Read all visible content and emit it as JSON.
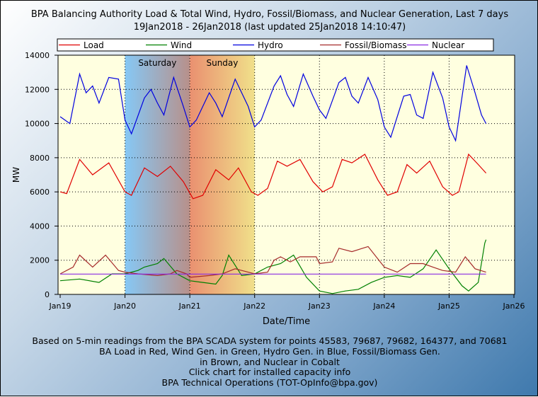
{
  "title_line1": "BPA Balancing Authority Load & Total Wind, Hydro, Fossil/Biomass, and Nuclear Generation, Last 7 days",
  "title_line2": "19Jan2018 - 26Jan2018 (last updated 25Jan2018 14:10:47)",
  "footer": [
    "Based on 5-min readings from the BPA SCADA system for points 45583, 79687, 79682, 164377, and 70681",
    "BA Load in Red, Wind Gen. in Green, Hydro Gen. in Blue, Fossil/Biomass Gen.",
    "in Brown, and Nuclear in Cobalt",
    "Click chart for installed capacity info",
    "BPA Technical Operations (TOT-OpInfo@bpa.gov)"
  ],
  "chart_data": {
    "type": "line",
    "xlabel": "Date/Time",
    "ylabel": "MW",
    "ylim": [
      0,
      14000
    ],
    "xlim_days": [
      0,
      7
    ],
    "yticks": [
      "0",
      "2000",
      "4000",
      "6000",
      "8000",
      "10000",
      "12000",
      "14000"
    ],
    "xticks": [
      "Jan19",
      "Jan20",
      "Jan21",
      "Jan22",
      "Jan23",
      "Jan24",
      "Jan25",
      "Jan26"
    ],
    "grid": true,
    "legend_placement": "top",
    "weekend_bands": [
      {
        "label": "Saturday",
        "start": 1,
        "end": 2
      },
      {
        "label": "Sunday",
        "start": 2,
        "end": 3
      }
    ],
    "series": [
      {
        "name": "Load",
        "color": "#e00000",
        "x": [
          0,
          0.1,
          0.3,
          0.5,
          0.75,
          1.0,
          1.1,
          1.3,
          1.5,
          1.7,
          1.9,
          2.05,
          2.2,
          2.4,
          2.6,
          2.75,
          2.95,
          3.05,
          3.2,
          3.35,
          3.5,
          3.7,
          3.9,
          4.05,
          4.2,
          4.35,
          4.5,
          4.7,
          4.9,
          5.05,
          5.2,
          5.35,
          5.5,
          5.7,
          5.9,
          6.05,
          6.15,
          6.3,
          6.45,
          6.57
        ],
        "values": [
          6000,
          5900,
          7900,
          7000,
          7700,
          6000,
          5800,
          7400,
          6900,
          7500,
          6600,
          5600,
          5800,
          7300,
          6700,
          7400,
          6000,
          5800,
          6200,
          7800,
          7500,
          7900,
          6600,
          6000,
          6300,
          7900,
          7700,
          8200,
          6700,
          5800,
          6000,
          7600,
          7100,
          7800,
          6300,
          5800,
          6000,
          8200,
          7600,
          7100
        ]
      },
      {
        "name": "Wind",
        "color": "#008000",
        "x": [
          0,
          0.3,
          0.6,
          0.8,
          1.0,
          1.2,
          1.3,
          1.5,
          1.6,
          1.8,
          2.0,
          2.2,
          2.4,
          2.5,
          2.6,
          2.8,
          3.0,
          3.2,
          3.4,
          3.6,
          3.8,
          4.0,
          4.2,
          4.4,
          4.6,
          4.8,
          5.0,
          5.2,
          5.4,
          5.6,
          5.8,
          6.0,
          6.2,
          6.3,
          6.45,
          6.55,
          6.57
        ],
        "values": [
          800,
          900,
          700,
          1200,
          1200,
          1400,
          1600,
          1800,
          2100,
          1200,
          800,
          700,
          600,
          1100,
          2300,
          1100,
          1200,
          1600,
          1800,
          2300,
          1000,
          200,
          50,
          200,
          300,
          700,
          1000,
          1100,
          1000,
          1500,
          2600,
          1500,
          500,
          200,
          700,
          3000,
          3200
        ]
      },
      {
        "name": "Hydro",
        "color": "#0000e0",
        "x": [
          0,
          0.15,
          0.3,
          0.4,
          0.5,
          0.6,
          0.75,
          0.9,
          1.0,
          1.1,
          1.3,
          1.4,
          1.5,
          1.6,
          1.75,
          1.9,
          2.0,
          2.1,
          2.3,
          2.4,
          2.5,
          2.7,
          2.9,
          3.0,
          3.1,
          3.3,
          3.4,
          3.5,
          3.6,
          3.75,
          3.9,
          4.0,
          4.1,
          4.3,
          4.4,
          4.5,
          4.6,
          4.75,
          4.9,
          5.0,
          5.1,
          5.3,
          5.4,
          5.5,
          5.6,
          5.75,
          5.9,
          6.0,
          6.1,
          6.27,
          6.4,
          6.5,
          6.57
        ],
        "values": [
          10400,
          10000,
          12900,
          11800,
          12200,
          11200,
          12700,
          12600,
          10200,
          9400,
          11500,
          12000,
          11200,
          10500,
          12700,
          11000,
          9800,
          10200,
          11800,
          11200,
          10400,
          12600,
          11000,
          9800,
          10200,
          12200,
          12800,
          11700,
          11000,
          12900,
          11600,
          10800,
          10300,
          12400,
          12700,
          11600,
          11200,
          12700,
          11400,
          9800,
          9200,
          11600,
          11700,
          10500,
          10300,
          13000,
          11500,
          9800,
          9000,
          13400,
          11800,
          10500,
          10000
        ]
      },
      {
        "name": "Fossil/Biomass",
        "color": "#a52a2a",
        "x": [
          0,
          0.2,
          0.3,
          0.5,
          0.7,
          0.9,
          1.0,
          1.2,
          1.5,
          1.7,
          1.8,
          1.95,
          2.0,
          2.3,
          2.5,
          2.7,
          2.9,
          3.0,
          3.2,
          3.3,
          3.4,
          3.55,
          3.7,
          3.95,
          4.0,
          4.2,
          4.3,
          4.5,
          4.75,
          5.0,
          5.2,
          5.4,
          5.6,
          5.75,
          5.9,
          6.1,
          6.25,
          6.4,
          6.57
        ],
        "values": [
          1200,
          1600,
          2300,
          1600,
          2300,
          1400,
          1300,
          1200,
          1100,
          1200,
          1400,
          1200,
          1000,
          1100,
          1200,
          1500,
          1300,
          1200,
          1300,
          2000,
          2200,
          1900,
          2200,
          2200,
          1800,
          1900,
          2700,
          2500,
          2800,
          1600,
          1300,
          1800,
          1800,
          1600,
          1400,
          1300,
          2200,
          1500,
          1300
        ]
      },
      {
        "name": "Nuclear",
        "color": "#8a2be2",
        "x": [
          0,
          6.57
        ],
        "values": [
          1190,
          1190
        ]
      }
    ]
  }
}
